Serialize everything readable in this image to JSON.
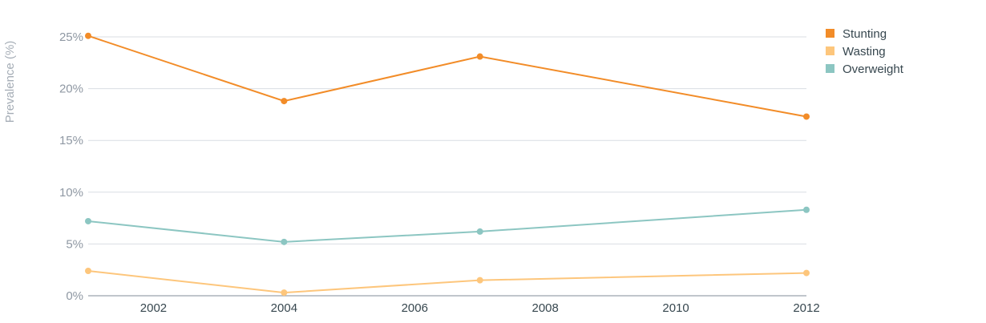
{
  "chart_data": {
    "type": "line",
    "title": "",
    "xlabel": "",
    "ylabel": "Prevalence (%)",
    "x": [
      2001,
      2004,
      2007,
      2012
    ],
    "xlim": [
      2001,
      2012
    ],
    "xticks": [
      2002,
      2004,
      2006,
      2008,
      2010,
      2012
    ],
    "ylim": [
      0,
      25
    ],
    "yticks": [
      0,
      5,
      10,
      15,
      20,
      25
    ],
    "ytick_labels": [
      "0%",
      "5%",
      "10%",
      "15%",
      "20%",
      "25%"
    ],
    "grid": true,
    "legend_position": "top-right",
    "series": [
      {
        "name": "Stunting",
        "color": "#f28c28",
        "values": [
          25.1,
          18.8,
          23.1,
          17.3
        ]
      },
      {
        "name": "Wasting",
        "color": "#fdc67c",
        "values": [
          2.4,
          0.3,
          1.5,
          2.2
        ]
      },
      {
        "name": "Overweight",
        "color": "#8cc6c2",
        "values": [
          7.2,
          5.2,
          6.2,
          8.3
        ]
      }
    ]
  }
}
